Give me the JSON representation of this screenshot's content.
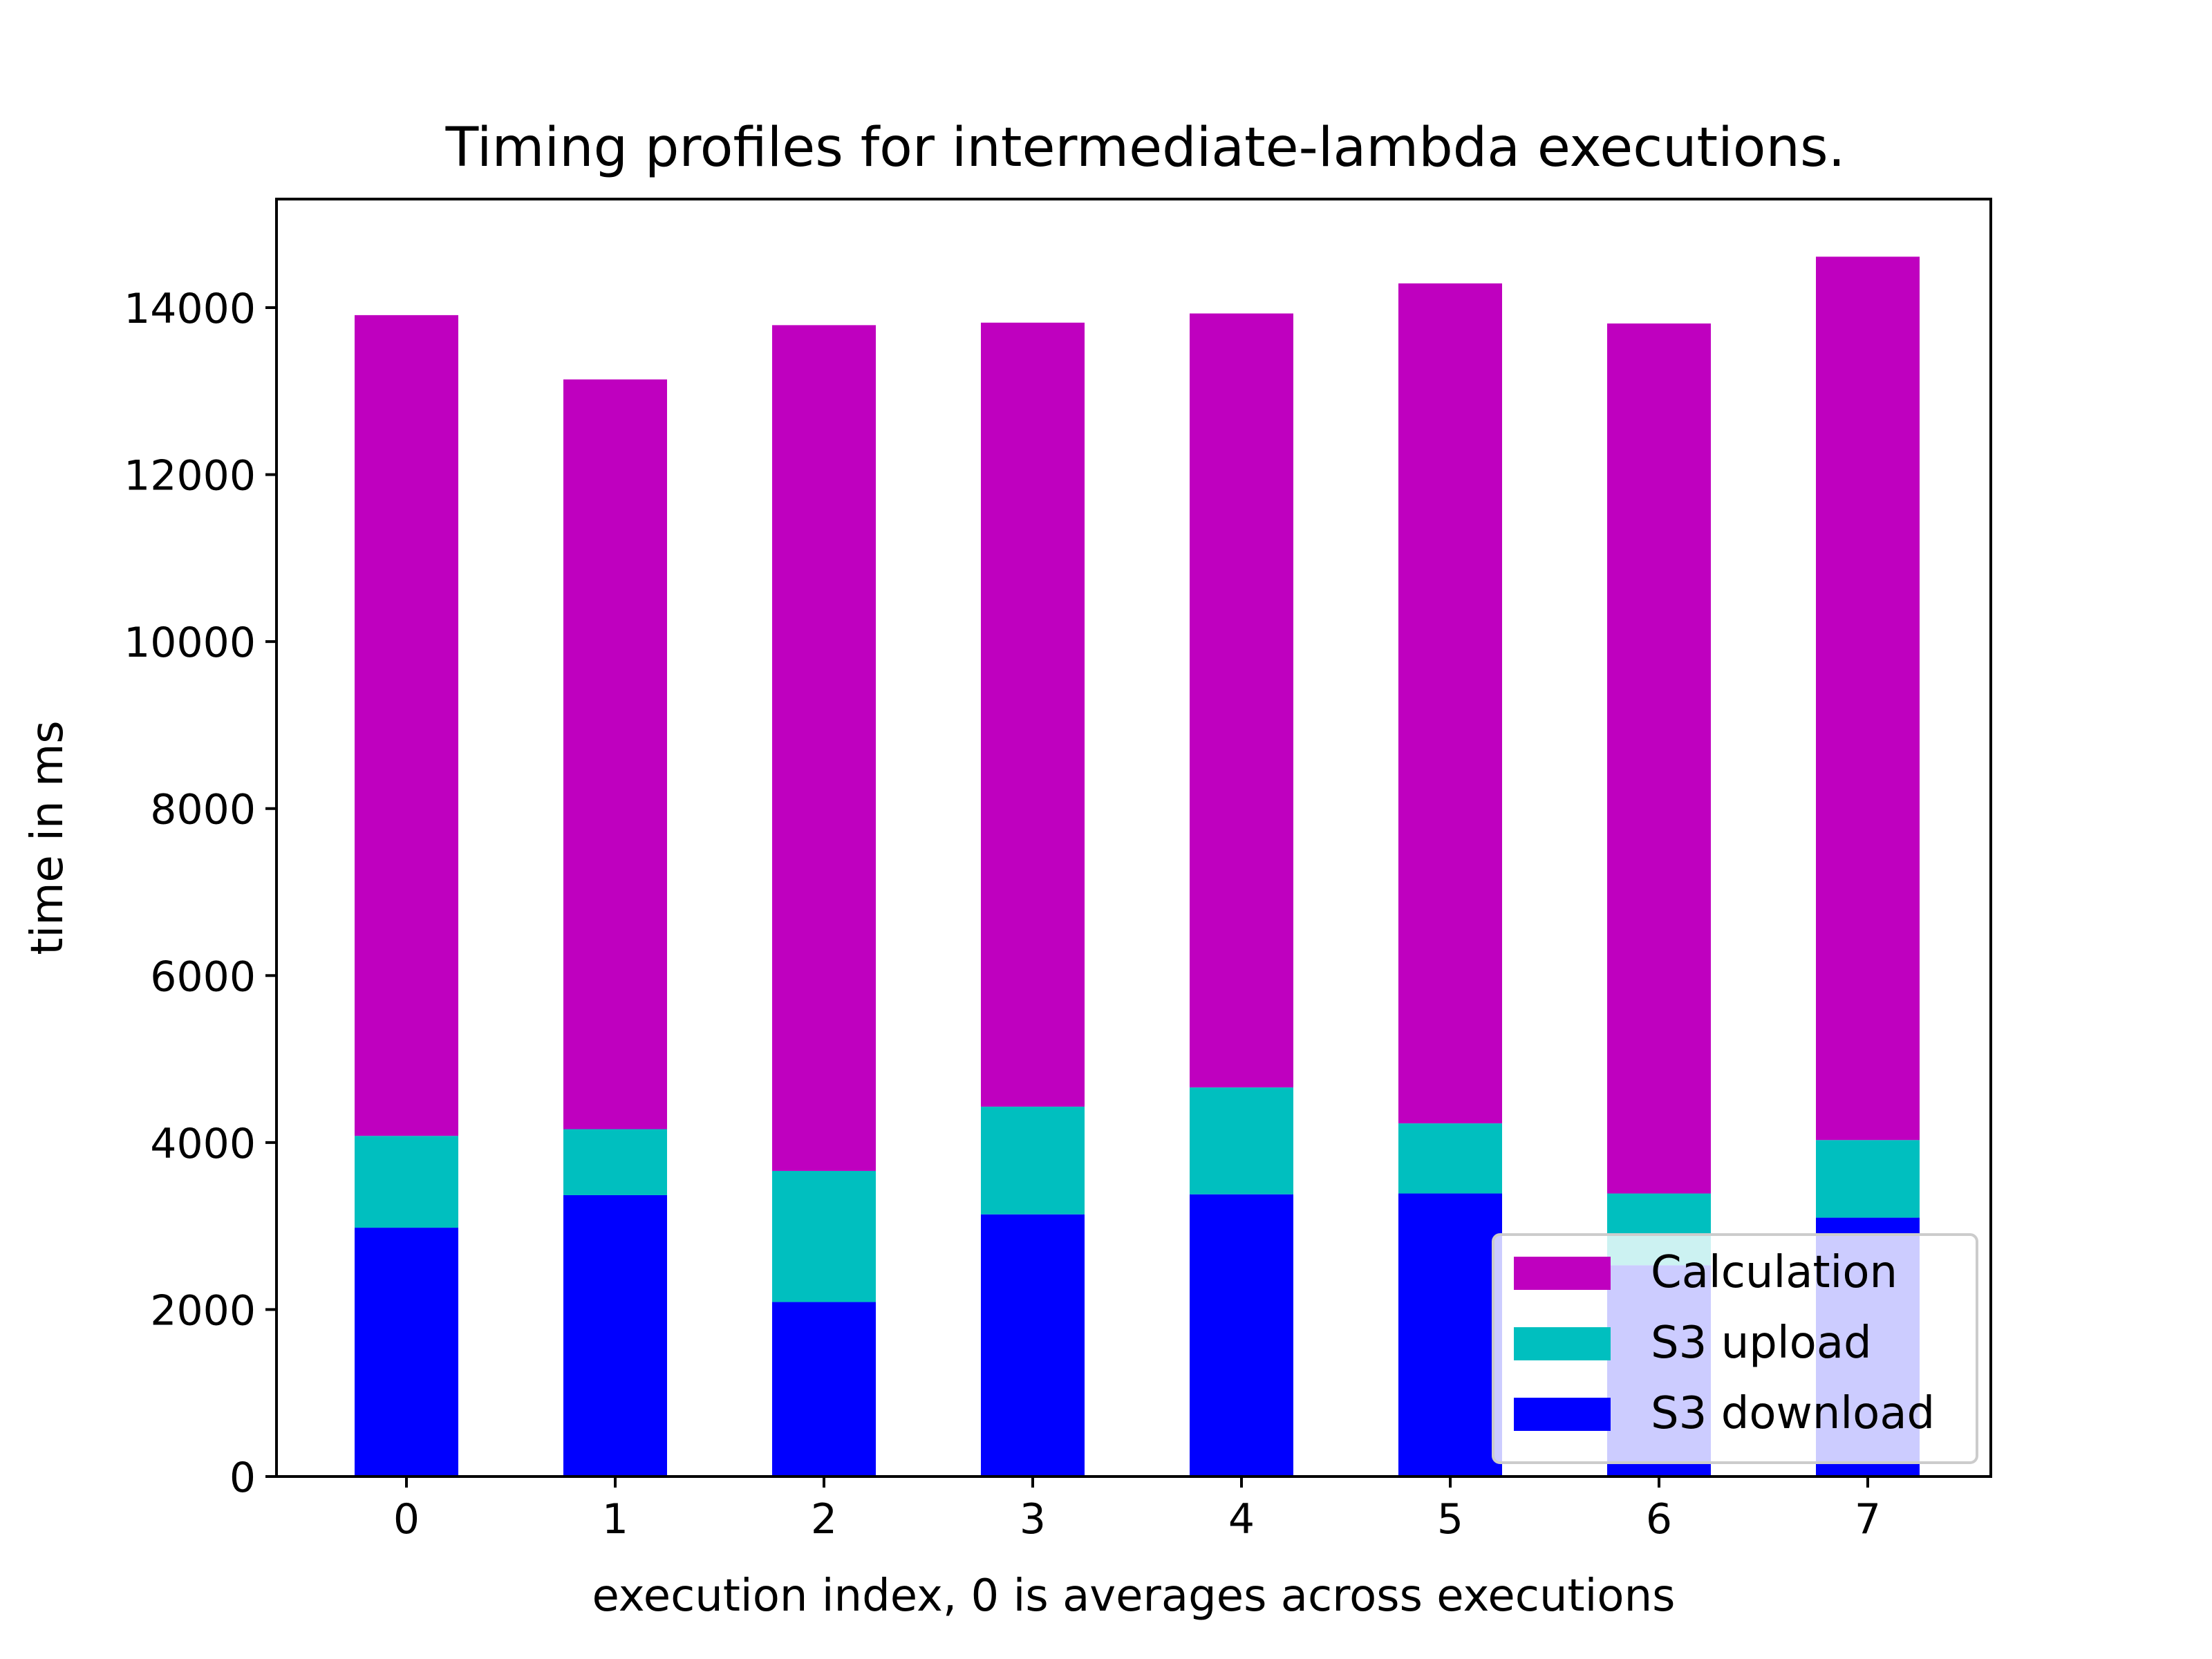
{
  "chart_data": {
    "type": "bar",
    "stacked": true,
    "title": "Timing profiles for intermediate-lambda executions.",
    "xlabel": "execution index, 0 is averages across executions",
    "ylabel": "time in ms",
    "categories": [
      "0",
      "1",
      "2",
      "3",
      "4",
      "5",
      "6",
      "7"
    ],
    "ylim": [
      0,
      15300
    ],
    "yticks": [
      0,
      2000,
      4000,
      6000,
      8000,
      10000,
      12000,
      14000
    ],
    "ytick_labels": [
      "0",
      "2000",
      "4000",
      "6000",
      "8000",
      "10000",
      "12000",
      "14000"
    ],
    "grid": false,
    "legend_position": "bottom-right",
    "series": [
      {
        "name": "S3 download",
        "color": "#0000ff",
        "values": [
          2980,
          3370,
          2090,
          3140,
          3380,
          3390,
          2530,
          3100
        ]
      },
      {
        "name": "S3 upload",
        "color": "#00bfbf",
        "values": [
          1100,
          790,
          1570,
          1290,
          1280,
          840,
          860,
          930
        ]
      },
      {
        "name": "Calculation",
        "color": "#bf00bf",
        "values": [
          9830,
          8980,
          10130,
          9390,
          9270,
          10060,
          10420,
          10580
        ]
      }
    ],
    "legend_order": [
      "Calculation",
      "S3 upload",
      "S3 download"
    ]
  }
}
